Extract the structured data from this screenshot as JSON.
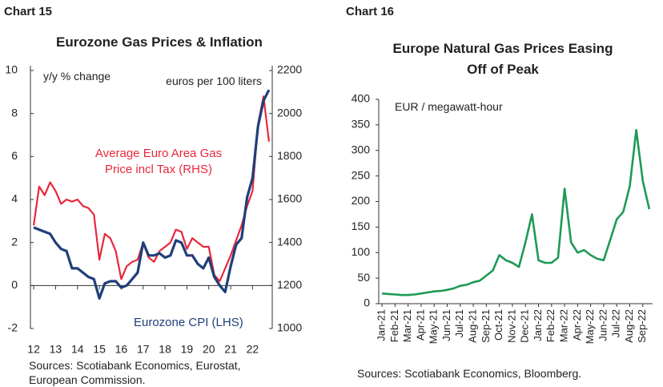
{
  "chart_data": [
    {
      "type": "line",
      "chart_label": "Chart 15",
      "title": "Eurozone Gas Prices & Inflation",
      "y_label": "y/y % change",
      "y2_label": "euros per 100 liters",
      "x": [
        12,
        12.25,
        12.5,
        12.75,
        13,
        13.25,
        13.5,
        13.75,
        14,
        14.25,
        14.5,
        14.75,
        15,
        15.25,
        15.5,
        15.75,
        16,
        16.25,
        16.5,
        16.75,
        17,
        17.25,
        17.5,
        17.75,
        18,
        18.25,
        18.5,
        18.75,
        19,
        19.25,
        19.5,
        19.75,
        20,
        20.25,
        20.5,
        20.75,
        21,
        21.25,
        21.5,
        21.75,
        22,
        22.25,
        22.5,
        22.75
      ],
      "xlim": [
        11.85,
        22.9
      ],
      "xticks": [
        12,
        13,
        14,
        15,
        16,
        17,
        18,
        19,
        20,
        21,
        22
      ],
      "ylim": [
        -2,
        10
      ],
      "yticks": [
        -2,
        0,
        2,
        4,
        6,
        8,
        10
      ],
      "y2lim": [
        1000,
        2200
      ],
      "y2ticks": [
        1000,
        1200,
        1400,
        1600,
        1800,
        2000,
        2200
      ],
      "series": [
        {
          "name": "Eurozone CPI (LHS)",
          "color": "#1f3f7a",
          "values": [
            2.7,
            2.6,
            2.5,
            2.4,
            2.0,
            1.7,
            1.6,
            0.8,
            0.8,
            0.6,
            0.4,
            0.3,
            -0.6,
            0.1,
            0.2,
            0.2,
            -0.1,
            0.0,
            0.3,
            0.6,
            2.0,
            1.4,
            1.4,
            1.5,
            1.3,
            1.4,
            2.1,
            2.0,
            1.4,
            1.4,
            1.0,
            0.8,
            1.3,
            0.4,
            0.0,
            -0.3,
            0.9,
            1.9,
            2.2,
            4.1,
            5.0,
            7.4,
            8.6,
            9.1
          ]
        },
        {
          "name": "Average Euro Area Gas Price incl Tax (RHS)",
          "color": "#e8283c",
          "axis": "y2",
          "values": [
            1480,
            1660,
            1620,
            1680,
            1640,
            1580,
            1600,
            1590,
            1600,
            1570,
            1560,
            1530,
            1320,
            1440,
            1420,
            1360,
            1230,
            1290,
            1310,
            1320,
            1400,
            1330,
            1310,
            1360,
            1380,
            1400,
            1460,
            1450,
            1370,
            1420,
            1400,
            1380,
            1380,
            1250,
            1220,
            1280,
            1340,
            1410,
            1480,
            1570,
            1640,
            1950,
            2080,
            1870
          ]
        }
      ],
      "source": "Sources: Scotiabank Economics, Eurostat, European Commission."
    },
    {
      "type": "line",
      "chart_label": "Chart 16",
      "title": "Europe Natural Gas Prices Easing Off of Peak",
      "y_label": "EUR / megawatt-hour",
      "categories": [
        "Jan-21",
        null,
        "Feb-21",
        null,
        "Mar-21",
        null,
        "Apr-21",
        null,
        "May-21",
        null,
        "Jun-21",
        null,
        "Jul-21",
        null,
        "Aug-21",
        null,
        "Sep-21",
        null,
        "Oct-21",
        null,
        "Nov-21",
        null,
        "Dec-21",
        null,
        "Jan-22",
        null,
        "Feb-22",
        null,
        "Mar-22",
        null,
        "Apr-22",
        null,
        "May-22",
        null,
        "Jun-22",
        null,
        "Jul-22",
        null,
        "Aug-22",
        null,
        "Sep-22",
        null
      ],
      "values": [
        20,
        19,
        18,
        17,
        17,
        18,
        20,
        22,
        24,
        25,
        27,
        30,
        35,
        37,
        42,
        45,
        55,
        65,
        95,
        85,
        80,
        72,
        120,
        175,
        85,
        80,
        80,
        90,
        225,
        120,
        100,
        105,
        95,
        88,
        85,
        125,
        165,
        180,
        230,
        340,
        240,
        185
      ],
      "color": "#1d9a55",
      "ylim": [
        0,
        400
      ],
      "yticks": [
        0,
        50,
        100,
        150,
        200,
        250,
        300,
        350,
        400
      ],
      "source": "Sources: Scotiabank Economics, Bloomberg."
    }
  ]
}
